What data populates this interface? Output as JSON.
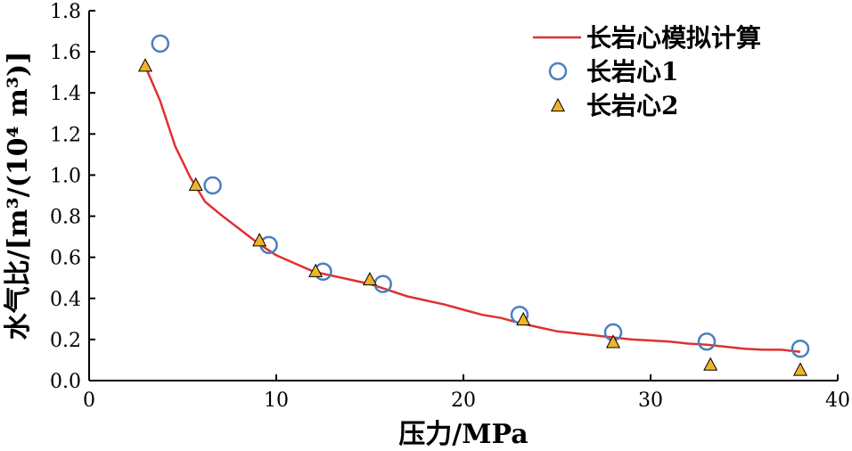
{
  "chart_data": {
    "type": "scatter",
    "xlabel": "压力/MPa",
    "ylabel": "水气比/[m³/(10⁴ m³)]",
    "xlim": [
      0,
      40
    ],
    "ylim": [
      0,
      1.8
    ],
    "xticks": [
      "0",
      "10",
      "20",
      "30",
      "40"
    ],
    "yticks": [
      "0.0",
      "0.2",
      "0.4",
      "0.6",
      "0.8",
      "1.0",
      "1.2",
      "1.4",
      "1.6",
      "1.8"
    ],
    "grid": false,
    "legend_position": "top-right",
    "series": [
      {
        "name": "长岩心模拟计算",
        "kind": "line",
        "color": "#e03030",
        "x": [
          3.0,
          3.8,
          4.6,
          5.4,
          6.2,
          7.0,
          8.0,
          9.0,
          10.0,
          11.0,
          12.0,
          13.0,
          14.0,
          15.0,
          16.0,
          17.0,
          18.0,
          19.0,
          20.0,
          21.0,
          22.0,
          23.0,
          24.0,
          25.0,
          26.0,
          27.0,
          28.0,
          29.0,
          30.0,
          31.0,
          32.0,
          33.0,
          34.0,
          35.0,
          36.0,
          37.0,
          38.0
        ],
        "y": [
          1.53,
          1.36,
          1.14,
          0.99,
          0.87,
          0.81,
          0.74,
          0.67,
          0.61,
          0.57,
          0.53,
          0.51,
          0.49,
          0.47,
          0.44,
          0.41,
          0.39,
          0.37,
          0.345,
          0.32,
          0.305,
          0.28,
          0.26,
          0.24,
          0.23,
          0.22,
          0.21,
          0.2,
          0.195,
          0.19,
          0.18,
          0.175,
          0.165,
          0.155,
          0.15,
          0.15,
          0.14
        ]
      },
      {
        "name": "长岩心1",
        "kind": "circle",
        "color": "#4a7fc0",
        "x": [
          3.8,
          6.6,
          9.6,
          12.5,
          15.7,
          23.0,
          28.0,
          33.0,
          38.0
        ],
        "y": [
          1.64,
          0.95,
          0.66,
          0.53,
          0.47,
          0.32,
          0.235,
          0.19,
          0.155
        ]
      },
      {
        "name": "长岩心2",
        "kind": "triangle",
        "color": "#f0b428",
        "x": [
          3.0,
          5.7,
          9.1,
          12.1,
          15.0,
          23.2,
          28.0,
          33.2,
          38.0
        ],
        "y": [
          1.53,
          0.95,
          0.68,
          0.53,
          0.49,
          0.295,
          0.185,
          0.075,
          0.05
        ]
      }
    ]
  }
}
